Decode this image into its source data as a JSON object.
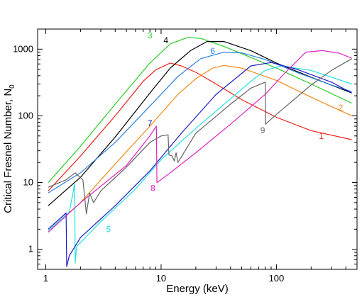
{
  "chart_data": {
    "type": "line",
    "title": "",
    "xlabel": "Energy (keV)",
    "ylabel": "Critical Fresnel Number, N",
    "ylabel_subscript": "0",
    "xscale": "log",
    "yscale": "log",
    "xlim": [
      0.85,
      500
    ],
    "ylim": [
      0.5,
      2000
    ],
    "grid": false,
    "x_ticks": [
      {
        "value": 1,
        "label": "1"
      },
      {
        "value": 10,
        "label": "10"
      },
      {
        "value": 100,
        "label": "100"
      }
    ],
    "y_ticks": [
      {
        "value": 1,
        "label": "1"
      },
      {
        "value": 10,
        "label": "10"
      },
      {
        "value": 100,
        "label": "100"
      },
      {
        "value": 1000,
        "label": "1000"
      }
    ],
    "series": [
      {
        "label": "1",
        "color": "#e8211d",
        "label_at": [
          245,
          45
        ],
        "points": [
          [
            1.05,
            7.5
          ],
          [
            2,
            25
          ],
          [
            4,
            100
          ],
          [
            7,
            330
          ],
          [
            9,
            490
          ],
          [
            12,
            620
          ],
          [
            15,
            560
          ],
          [
            20,
            450
          ],
          [
            30,
            300
          ],
          [
            50,
            175
          ],
          [
            100,
            95
          ],
          [
            200,
            60
          ],
          [
            450,
            44
          ]
        ]
      },
      {
        "label": "2",
        "color": "#f28a1c",
        "label_at": [
          360,
          120
        ],
        "points": [
          [
            1.05,
            1.8
          ],
          [
            1.3,
            2.6
          ],
          [
            2,
            5
          ],
          [
            4,
            19
          ],
          [
            8,
            70
          ],
          [
            14,
            210
          ],
          [
            20,
            360
          ],
          [
            28,
            520
          ],
          [
            35,
            570
          ],
          [
            50,
            520
          ],
          [
            100,
            340
          ],
          [
            200,
            190
          ],
          [
            450,
            100
          ]
        ]
      },
      {
        "label": "3",
        "color": "#29cc29",
        "label_at": [
          8,
          1450
        ],
        "points": [
          [
            1.05,
            10
          ],
          [
            2,
            35
          ],
          [
            4,
            150
          ],
          [
            8,
            620
          ],
          [
            12,
            1200
          ],
          [
            17,
            1500
          ],
          [
            22,
            1450
          ],
          [
            35,
            1100
          ],
          [
            60,
            750
          ],
          [
            100,
            520
          ],
          [
            200,
            300
          ],
          [
            450,
            155
          ]
        ]
      },
      {
        "label": "4",
        "color": "#000000",
        "label_at": [
          11,
          1230
        ],
        "points": [
          [
            1.05,
            4.5
          ],
          [
            2,
            12
          ],
          [
            4,
            48
          ],
          [
            8,
            220
          ],
          [
            12,
            520
          ],
          [
            18,
            950
          ],
          [
            25,
            1300
          ],
          [
            35,
            1300
          ],
          [
            60,
            950
          ],
          [
            100,
            620
          ],
          [
            200,
            380
          ],
          [
            450,
            220
          ]
        ]
      },
      {
        "label": "5",
        "color": "#25e0e0",
        "label_at": [
          3.5,
          1.8
        ],
        "points": [
          [
            1.05,
            1.9
          ],
          [
            1.6,
            3.6
          ],
          [
            1.78,
            9.5
          ],
          [
            1.8,
            0.62
          ],
          [
            1.85,
            1.1
          ],
          [
            3,
            2.6
          ],
          [
            6,
            8
          ],
          [
            10,
            22
          ],
          [
            20,
            65
          ],
          [
            40,
            180
          ],
          [
            60,
            330
          ],
          [
            80,
            480
          ],
          [
            110,
            560
          ],
          [
            200,
            480
          ],
          [
            450,
            300
          ]
        ]
      },
      {
        "label": "6",
        "color": "#2b7fdc",
        "label_at": [
          28,
          850
        ],
        "points": [
          [
            1.05,
            7
          ],
          [
            2,
            14
          ],
          [
            4,
            40
          ],
          [
            8,
            140
          ],
          [
            14,
            390
          ],
          [
            22,
            720
          ],
          [
            35,
            900
          ],
          [
            50,
            880
          ],
          [
            80,
            700
          ],
          [
            150,
            450
          ],
          [
            300,
            290
          ],
          [
            450,
            230
          ]
        ]
      },
      {
        "label": "7",
        "color": "#1b1bc6",
        "label_at": [
          8,
          70
        ],
        "points": [
          [
            1.05,
            2
          ],
          [
            1.5,
            3.5
          ],
          [
            1.52,
            0.55
          ],
          [
            1.6,
            0.8
          ],
          [
            2,
            1.5
          ],
          [
            4,
            4.5
          ],
          [
            8,
            15
          ],
          [
            15,
            55
          ],
          [
            30,
            210
          ],
          [
            60,
            560
          ],
          [
            90,
            630
          ],
          [
            150,
            500
          ],
          [
            300,
            320
          ],
          [
            450,
            220
          ]
        ]
      },
      {
        "label": "8",
        "color": "#e023c0",
        "label_at": [
          8.5,
          7.5
        ],
        "points": [
          [
            1.05,
            1.8
          ],
          [
            2,
            5
          ],
          [
            5,
            18
          ],
          [
            8,
            50
          ],
          [
            9.1,
            70
          ],
          [
            9.2,
            10
          ],
          [
            12,
            14
          ],
          [
            20,
            28
          ],
          [
            40,
            75
          ],
          [
            80,
            210
          ],
          [
            120,
            450
          ],
          [
            180,
            900
          ],
          [
            250,
            950
          ],
          [
            350,
            870
          ],
          [
            450,
            730
          ]
        ]
      },
      {
        "label": "9",
        "color": "#646464",
        "label_at": [
          76,
          55
        ],
        "points": [
          [
            1.05,
            8.5
          ],
          [
            1.5,
            11
          ],
          [
            1.8,
            14
          ],
          [
            2.1,
            11
          ],
          [
            2.25,
            3.4
          ],
          [
            2.4,
            7
          ],
          [
            2.6,
            5
          ],
          [
            3,
            7.5
          ],
          [
            5,
            17
          ],
          [
            8,
            40
          ],
          [
            10,
            50
          ],
          [
            11.5,
            52
          ],
          [
            11.7,
            26
          ],
          [
            12.5,
            25
          ],
          [
            13,
            21
          ],
          [
            13.5,
            28
          ],
          [
            14,
            20
          ],
          [
            20,
            55
          ],
          [
            40,
            150
          ],
          [
            60,
            260
          ],
          [
            80,
            320
          ],
          [
            80.5,
            75
          ],
          [
            100,
            105
          ],
          [
            200,
            290
          ],
          [
            300,
            480
          ],
          [
            450,
            720
          ]
        ]
      }
    ]
  }
}
